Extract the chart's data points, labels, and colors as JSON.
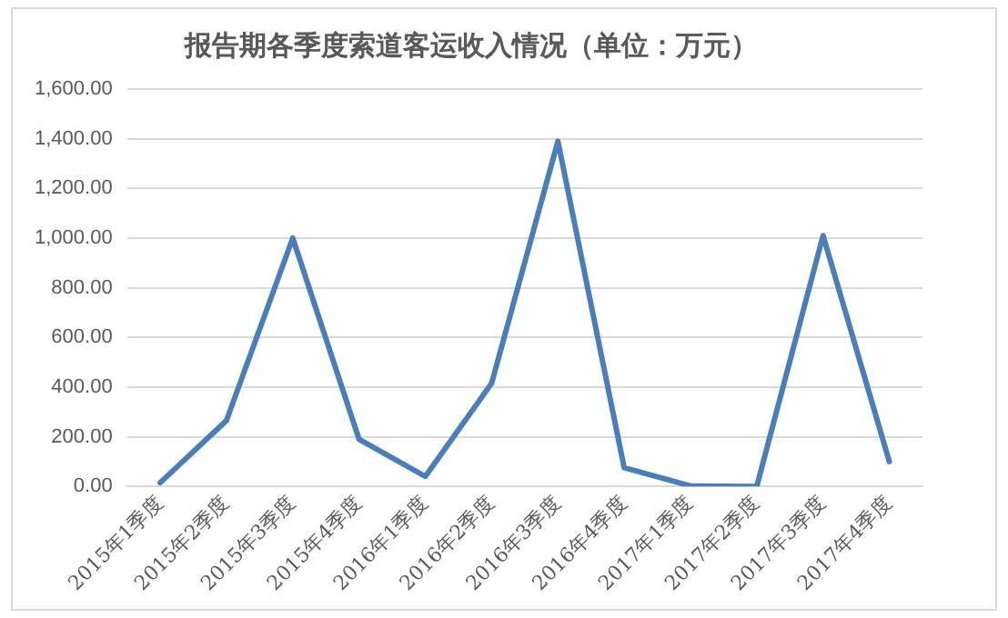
{
  "chart_data": {
    "type": "line",
    "title": "报告期各季度索道客运收入情况（单位：万元）",
    "categories": [
      "2015年1季度",
      "2015年2季度",
      "2015年3季度",
      "2015年4季度",
      "2016年1季度",
      "2016年2季度",
      "2016年3季度",
      "2016年4季度",
      "2017年1季度",
      "2017年2季度",
      "2017年3季度",
      "2017年4季度"
    ],
    "series": [
      {
        "color": "#4a7ebb",
        "values": [
          15,
          265,
          1000,
          190,
          40,
          415,
          1390,
          75,
          2,
          0,
          1010,
          100
        ]
      }
    ],
    "ylim": [
      0,
      1600
    ],
    "yticks": [
      {
        "value": 0,
        "label": "0.00"
      },
      {
        "value": 200,
        "label": "200.00"
      },
      {
        "value": 400,
        "label": "400.00"
      },
      {
        "value": 600,
        "label": "600.00"
      },
      {
        "value": 800,
        "label": "800.00"
      },
      {
        "value": 1000,
        "label": "1,000.00"
      },
      {
        "value": 1200,
        "label": "1,200.00"
      },
      {
        "value": 1400,
        "label": "1,400.00"
      },
      {
        "value": 1600,
        "label": "1,600.00"
      }
    ],
    "grid": "y",
    "marker": "none",
    "line_style": "solid",
    "legend": false
  }
}
